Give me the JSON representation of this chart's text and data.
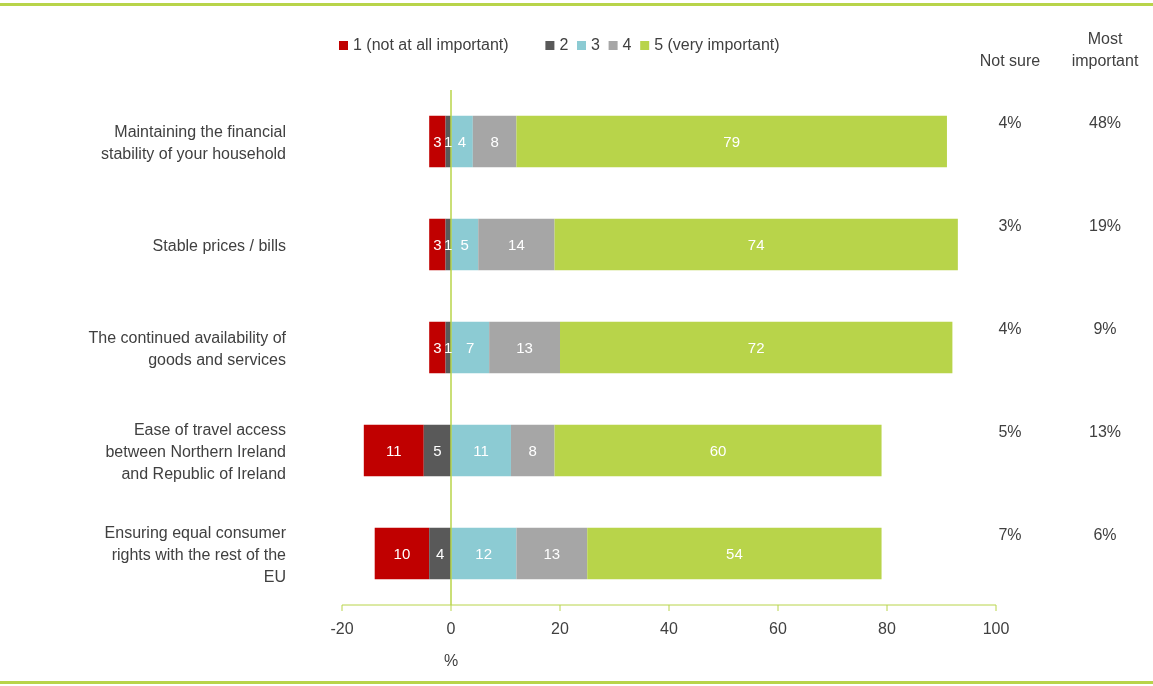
{
  "chart_data": {
    "type": "bar",
    "orientation": "horizontal",
    "xlabel": "%",
    "categories": [
      "Maintaining the financial stability of your household",
      "Stable prices / bills",
      "The continued availability of goods and services",
      "Ease of travel access between Northern Ireland and Republic of Ireland",
      "Ensuring equal consumer rights with the rest of the EU"
    ],
    "series": [
      {
        "name": "1 (not at all important)",
        "color": "#c00000",
        "values": [
          3,
          3,
          3,
          11,
          10
        ],
        "base": [
          -4,
          -4,
          -4,
          -16,
          -14
        ]
      },
      {
        "name": "2",
        "color": "#595959",
        "values": [
          1,
          1,
          1,
          5,
          4
        ],
        "base": [
          -1,
          -1,
          -1,
          -5,
          -4
        ]
      },
      {
        "name": "3",
        "color": "#8ccbd3",
        "values": [
          4,
          5,
          7,
          11,
          12
        ],
        "base": [
          0,
          0,
          0,
          0,
          0
        ]
      },
      {
        "name": "4",
        "color": "#a6a6a6",
        "values": [
          8,
          14,
          13,
          8,
          13
        ],
        "base": [
          4,
          5,
          7,
          11,
          12
        ]
      },
      {
        "name": "5 (very important)",
        "color": "#b8d44a",
        "values": [
          79,
          74,
          72,
          60,
          54
        ],
        "base": [
          12,
          19,
          20,
          19,
          25
        ]
      }
    ],
    "xlim": [
      -20,
      100
    ],
    "xticks": [
      -20,
      0,
      20,
      40,
      60,
      80,
      100
    ],
    "ref_lines": [
      {
        "axis": "x",
        "value": 0,
        "color": "#b8d44a"
      }
    ],
    "data_labels": true,
    "legend": "top",
    "grid": false,
    "annotations": [
      "Not sure",
      "Most important",
      "4%",
      "48%",
      "3%",
      "19%",
      "4%",
      "9%",
      "5%",
      "13%",
      "7%",
      "6%"
    ]
  }
}
